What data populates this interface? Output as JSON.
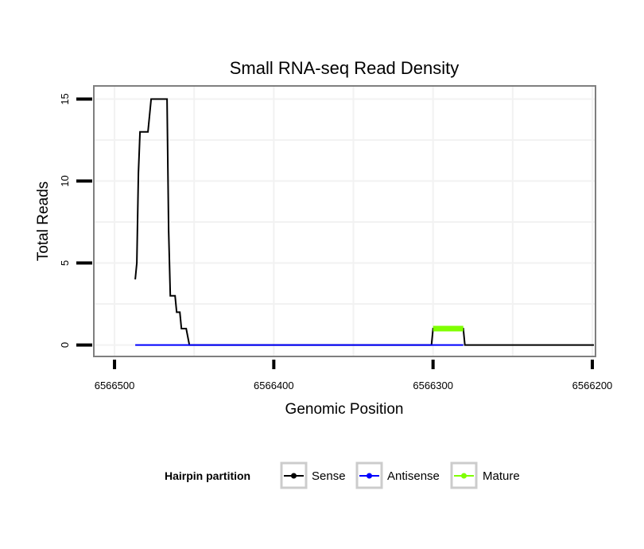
{
  "chart_data": {
    "type": "line",
    "title": "Small RNA-seq Read Density",
    "xlabel": "Genomic Position",
    "ylabel": "Total Reads",
    "xlim": [
      6566513,
      6566198
    ],
    "x_reversed": true,
    "ylim": [
      -0.7,
      15.8
    ],
    "x_ticks": [
      6566500,
      6566400,
      6566300,
      6566200
    ],
    "x_tick_labels": [
      "6566500",
      "6566400",
      "6566300",
      "6566200"
    ],
    "y_ticks": [
      0,
      5,
      10,
      15
    ],
    "y_tick_labels": [
      "0",
      "5",
      "10",
      "15"
    ],
    "grid": true,
    "legend": {
      "title": "Hairpin partition",
      "position": "bottom",
      "entries": [
        "Sense",
        "Antisense",
        "Mature"
      ]
    },
    "series": [
      {
        "name": "Sense",
        "color": "#000000",
        "points": [
          [
            6566487,
            4
          ],
          [
            6566486,
            5
          ],
          [
            6566485,
            10.5
          ],
          [
            6566484,
            13
          ],
          [
            6566479,
            13
          ],
          [
            6566477,
            15
          ],
          [
            6566467,
            15
          ],
          [
            6566466,
            7
          ],
          [
            6566465,
            3
          ],
          [
            6566462,
            3
          ],
          [
            6566461,
            2
          ],
          [
            6566459,
            2
          ],
          [
            6566458,
            1
          ],
          [
            6566455,
            1
          ],
          [
            6566453,
            0
          ],
          [
            6566301,
            0
          ],
          [
            6566300,
            1
          ],
          [
            6566281,
            1
          ],
          [
            6566280,
            0
          ],
          [
            6566199,
            0
          ]
        ]
      },
      {
        "name": "Antisense",
        "color": "#0000ff",
        "points": [
          [
            6566487,
            0
          ],
          [
            6566455,
            0
          ],
          [
            6566301,
            0
          ],
          [
            6566281,
            0
          ]
        ]
      },
      {
        "name": "Mature",
        "color": "#7fff00",
        "points": [
          [
            6566300,
            1
          ],
          [
            6566281,
            1
          ]
        ]
      }
    ]
  }
}
